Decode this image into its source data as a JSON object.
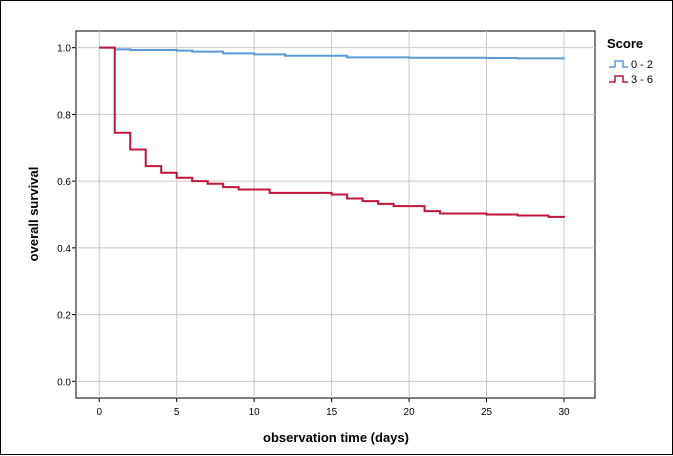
{
  "chart_data": {
    "type": "line",
    "step": true,
    "title": "",
    "xlabel": "observation time (days)",
    "ylabel": "overall survival",
    "xlim": [
      -1.5,
      32
    ],
    "ylim": [
      -0.05,
      1.05
    ],
    "xticks": [
      0,
      5,
      10,
      15,
      20,
      25,
      30
    ],
    "yticks": [
      0.0,
      0.2,
      0.4,
      0.6,
      0.8,
      1.0
    ],
    "grid": true,
    "legend": {
      "title": "Score",
      "placement": "top-right"
    },
    "series": [
      {
        "name": "0 - 2",
        "color": "#5b9bd5",
        "points": [
          [
            0,
            1.0
          ],
          [
            1,
            0.995
          ],
          [
            2,
            0.993
          ],
          [
            5,
            0.991
          ],
          [
            6,
            0.988
          ],
          [
            8,
            0.983
          ],
          [
            10,
            0.98
          ],
          [
            12,
            0.976
          ],
          [
            16,
            0.971
          ],
          [
            20,
            0.97
          ],
          [
            25,
            0.969
          ],
          [
            27,
            0.968
          ],
          [
            30,
            0.967
          ]
        ]
      },
      {
        "name": "3 - 6",
        "color": "#c0143c",
        "points": [
          [
            0,
            1.0
          ],
          [
            1,
            0.745
          ],
          [
            2,
            0.695
          ],
          [
            3,
            0.645
          ],
          [
            4,
            0.625
          ],
          [
            5,
            0.61
          ],
          [
            6,
            0.6
          ],
          [
            7,
            0.592
          ],
          [
            8,
            0.582
          ],
          [
            9,
            0.575
          ],
          [
            11,
            0.565
          ],
          [
            15,
            0.56
          ],
          [
            16,
            0.548
          ],
          [
            17,
            0.54
          ],
          [
            18,
            0.532
          ],
          [
            19,
            0.525
          ],
          [
            21,
            0.51
          ],
          [
            22,
            0.503
          ],
          [
            25,
            0.5
          ],
          [
            27,
            0.497
          ],
          [
            29,
            0.493
          ],
          [
            30,
            0.49
          ]
        ]
      }
    ]
  }
}
